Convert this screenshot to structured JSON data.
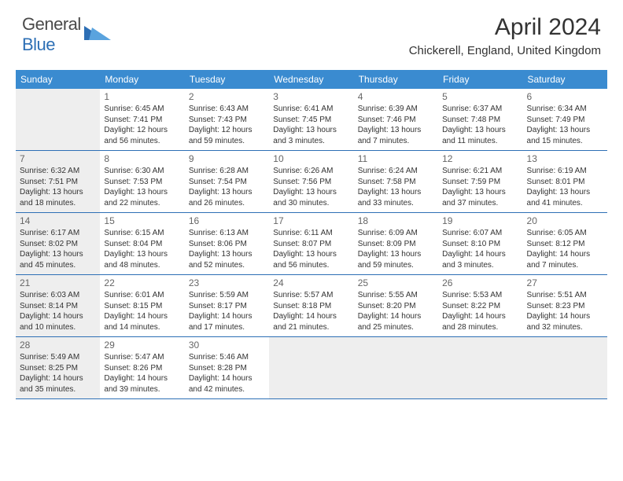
{
  "logo": {
    "general": "General",
    "blue": "Blue"
  },
  "title": "April 2024",
  "location": "Chickerell, England, United Kingdom",
  "colors": {
    "header_bg": "#3a8bd0",
    "border": "#2d6fb5",
    "shaded": "#eeeeee",
    "text": "#333333"
  },
  "daynames": [
    "Sunday",
    "Monday",
    "Tuesday",
    "Wednesday",
    "Thursday",
    "Friday",
    "Saturday"
  ],
  "grid": [
    [
      {
        "shaded": true
      },
      {
        "num": "1",
        "sunrise": "Sunrise: 6:45 AM",
        "sunset": "Sunset: 7:41 PM",
        "daylight1": "Daylight: 12 hours",
        "daylight2": "and 56 minutes."
      },
      {
        "num": "2",
        "sunrise": "Sunrise: 6:43 AM",
        "sunset": "Sunset: 7:43 PM",
        "daylight1": "Daylight: 12 hours",
        "daylight2": "and 59 minutes."
      },
      {
        "num": "3",
        "sunrise": "Sunrise: 6:41 AM",
        "sunset": "Sunset: 7:45 PM",
        "daylight1": "Daylight: 13 hours",
        "daylight2": "and 3 minutes."
      },
      {
        "num": "4",
        "sunrise": "Sunrise: 6:39 AM",
        "sunset": "Sunset: 7:46 PM",
        "daylight1": "Daylight: 13 hours",
        "daylight2": "and 7 minutes."
      },
      {
        "num": "5",
        "sunrise": "Sunrise: 6:37 AM",
        "sunset": "Sunset: 7:48 PM",
        "daylight1": "Daylight: 13 hours",
        "daylight2": "and 11 minutes."
      },
      {
        "num": "6",
        "sunrise": "Sunrise: 6:34 AM",
        "sunset": "Sunset: 7:49 PM",
        "daylight1": "Daylight: 13 hours",
        "daylight2": "and 15 minutes."
      }
    ],
    [
      {
        "num": "7",
        "shaded": true,
        "sunrise": "Sunrise: 6:32 AM",
        "sunset": "Sunset: 7:51 PM",
        "daylight1": "Daylight: 13 hours",
        "daylight2": "and 18 minutes."
      },
      {
        "num": "8",
        "sunrise": "Sunrise: 6:30 AM",
        "sunset": "Sunset: 7:53 PM",
        "daylight1": "Daylight: 13 hours",
        "daylight2": "and 22 minutes."
      },
      {
        "num": "9",
        "sunrise": "Sunrise: 6:28 AM",
        "sunset": "Sunset: 7:54 PM",
        "daylight1": "Daylight: 13 hours",
        "daylight2": "and 26 minutes."
      },
      {
        "num": "10",
        "sunrise": "Sunrise: 6:26 AM",
        "sunset": "Sunset: 7:56 PM",
        "daylight1": "Daylight: 13 hours",
        "daylight2": "and 30 minutes."
      },
      {
        "num": "11",
        "sunrise": "Sunrise: 6:24 AM",
        "sunset": "Sunset: 7:58 PM",
        "daylight1": "Daylight: 13 hours",
        "daylight2": "and 33 minutes."
      },
      {
        "num": "12",
        "sunrise": "Sunrise: 6:21 AM",
        "sunset": "Sunset: 7:59 PM",
        "daylight1": "Daylight: 13 hours",
        "daylight2": "and 37 minutes."
      },
      {
        "num": "13",
        "sunrise": "Sunrise: 6:19 AM",
        "sunset": "Sunset: 8:01 PM",
        "daylight1": "Daylight: 13 hours",
        "daylight2": "and 41 minutes."
      }
    ],
    [
      {
        "num": "14",
        "shaded": true,
        "sunrise": "Sunrise: 6:17 AM",
        "sunset": "Sunset: 8:02 PM",
        "daylight1": "Daylight: 13 hours",
        "daylight2": "and 45 minutes."
      },
      {
        "num": "15",
        "sunrise": "Sunrise: 6:15 AM",
        "sunset": "Sunset: 8:04 PM",
        "daylight1": "Daylight: 13 hours",
        "daylight2": "and 48 minutes."
      },
      {
        "num": "16",
        "sunrise": "Sunrise: 6:13 AM",
        "sunset": "Sunset: 8:06 PM",
        "daylight1": "Daylight: 13 hours",
        "daylight2": "and 52 minutes."
      },
      {
        "num": "17",
        "sunrise": "Sunrise: 6:11 AM",
        "sunset": "Sunset: 8:07 PM",
        "daylight1": "Daylight: 13 hours",
        "daylight2": "and 56 minutes."
      },
      {
        "num": "18",
        "sunrise": "Sunrise: 6:09 AM",
        "sunset": "Sunset: 8:09 PM",
        "daylight1": "Daylight: 13 hours",
        "daylight2": "and 59 minutes."
      },
      {
        "num": "19",
        "sunrise": "Sunrise: 6:07 AM",
        "sunset": "Sunset: 8:10 PM",
        "daylight1": "Daylight: 14 hours",
        "daylight2": "and 3 minutes."
      },
      {
        "num": "20",
        "sunrise": "Sunrise: 6:05 AM",
        "sunset": "Sunset: 8:12 PM",
        "daylight1": "Daylight: 14 hours",
        "daylight2": "and 7 minutes."
      }
    ],
    [
      {
        "num": "21",
        "shaded": true,
        "sunrise": "Sunrise: 6:03 AM",
        "sunset": "Sunset: 8:14 PM",
        "daylight1": "Daylight: 14 hours",
        "daylight2": "and 10 minutes."
      },
      {
        "num": "22",
        "sunrise": "Sunrise: 6:01 AM",
        "sunset": "Sunset: 8:15 PM",
        "daylight1": "Daylight: 14 hours",
        "daylight2": "and 14 minutes."
      },
      {
        "num": "23",
        "sunrise": "Sunrise: 5:59 AM",
        "sunset": "Sunset: 8:17 PM",
        "daylight1": "Daylight: 14 hours",
        "daylight2": "and 17 minutes."
      },
      {
        "num": "24",
        "sunrise": "Sunrise: 5:57 AM",
        "sunset": "Sunset: 8:18 PM",
        "daylight1": "Daylight: 14 hours",
        "daylight2": "and 21 minutes."
      },
      {
        "num": "25",
        "sunrise": "Sunrise: 5:55 AM",
        "sunset": "Sunset: 8:20 PM",
        "daylight1": "Daylight: 14 hours",
        "daylight2": "and 25 minutes."
      },
      {
        "num": "26",
        "sunrise": "Sunrise: 5:53 AM",
        "sunset": "Sunset: 8:22 PM",
        "daylight1": "Daylight: 14 hours",
        "daylight2": "and 28 minutes."
      },
      {
        "num": "27",
        "sunrise": "Sunrise: 5:51 AM",
        "sunset": "Sunset: 8:23 PM",
        "daylight1": "Daylight: 14 hours",
        "daylight2": "and 32 minutes."
      }
    ],
    [
      {
        "num": "28",
        "shaded": true,
        "sunrise": "Sunrise: 5:49 AM",
        "sunset": "Sunset: 8:25 PM",
        "daylight1": "Daylight: 14 hours",
        "daylight2": "and 35 minutes."
      },
      {
        "num": "29",
        "sunrise": "Sunrise: 5:47 AM",
        "sunset": "Sunset: 8:26 PM",
        "daylight1": "Daylight: 14 hours",
        "daylight2": "and 39 minutes."
      },
      {
        "num": "30",
        "sunrise": "Sunrise: 5:46 AM",
        "sunset": "Sunset: 8:28 PM",
        "daylight1": "Daylight: 14 hours",
        "daylight2": "and 42 minutes."
      },
      {
        "shaded": true
      },
      {
        "shaded": true
      },
      {
        "shaded": true
      },
      {
        "shaded": true
      }
    ]
  ]
}
